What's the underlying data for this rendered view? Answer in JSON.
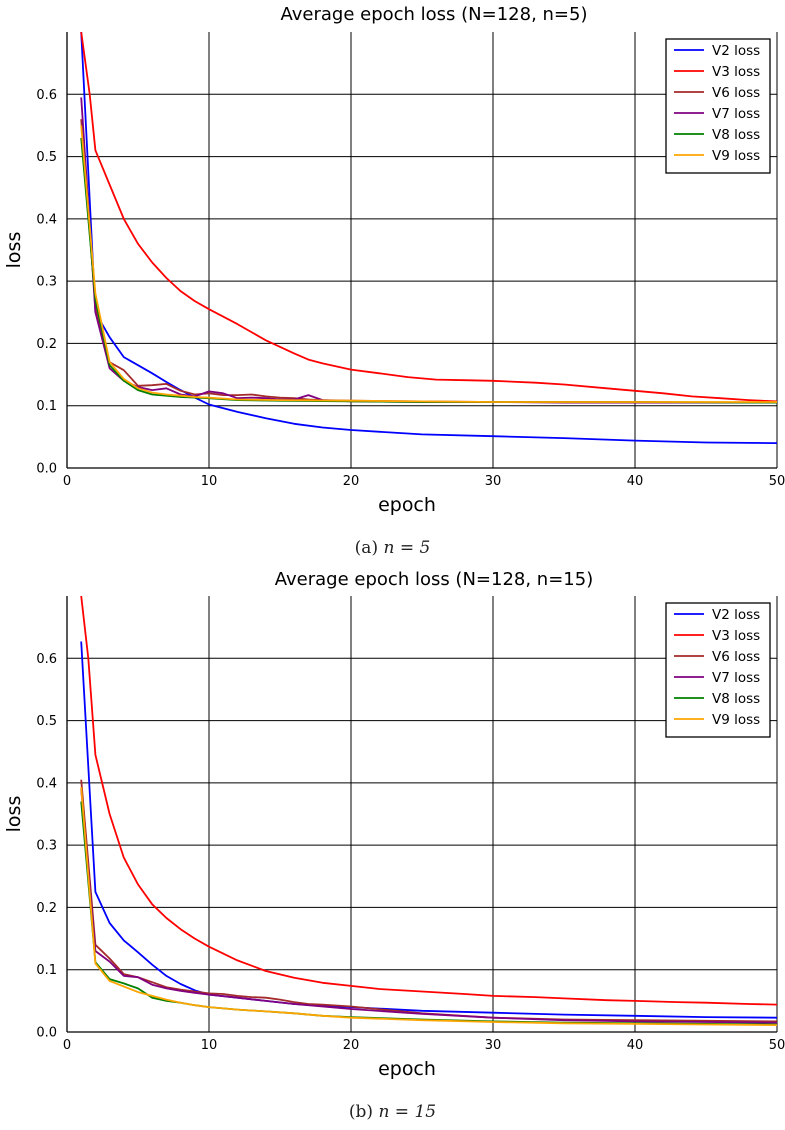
{
  "charts": [
    {
      "caption_prefix": "(a)",
      "caption_math": "n = 5",
      "chart_data": {
        "type": "line",
        "title": "Average epoch loss (N=128, n=5)",
        "xlabel": "epoch",
        "ylabel": "loss",
        "xlim": [
          0,
          50
        ],
        "ylim": [
          0,
          0.7
        ],
        "xticks": [
          0,
          10,
          20,
          30,
          40,
          50
        ],
        "yticks": [
          0.0,
          0.1,
          0.2,
          0.3,
          0.4,
          0.5,
          0.6
        ],
        "grid": true,
        "legend": "top-right",
        "series": [
          {
            "name": "V2 loss",
            "color": "#0000ff",
            "x": [
              1,
              2,
              3,
              4,
              5,
              6,
              7,
              8,
              9,
              10,
              12,
              14,
              16,
              18,
              20,
              25,
              30,
              35,
              40,
              45,
              50
            ],
            "values": [
              0.7,
              0.25,
              0.21,
              0.178,
              0.165,
              0.152,
              0.138,
              0.125,
              0.113,
              0.102,
              0.09,
              0.08,
              0.071,
              0.065,
              0.061,
              0.054,
              0.051,
              0.048,
              0.044,
              0.041,
              0.04
            ]
          },
          {
            "name": "V3 loss",
            "color": "#ff0000",
            "x": [
              1,
              1.6,
              2,
              3,
              4,
              5,
              6,
              7,
              8,
              9,
              10,
              12,
              14,
              16,
              17,
              18,
              20,
              22,
              24,
              26,
              28,
              30,
              33,
              35,
              38,
              40,
              42,
              44,
              46,
              48,
              50
            ],
            "values": [
              0.7,
              0.6,
              0.51,
              0.455,
              0.4,
              0.36,
              0.33,
              0.305,
              0.284,
              0.268,
              0.255,
              0.231,
              0.205,
              0.184,
              0.174,
              0.168,
              0.158,
              0.152,
              0.146,
              0.142,
              0.141,
              0.14,
              0.137,
              0.134,
              0.128,
              0.124,
              0.12,
              0.115,
              0.112,
              0.109,
              0.107
            ]
          },
          {
            "name": "V6 loss",
            "color": "#a52a2a",
            "x": [
              1,
              2,
              3,
              4,
              5,
              6,
              7,
              8,
              9,
              10,
              11,
              12,
              13,
              14,
              15,
              16,
              17,
              18,
              20,
              25,
              30,
              35,
              40,
              45,
              50
            ],
            "values": [
              0.56,
              0.26,
              0.17,
              0.157,
              0.132,
              0.133,
              0.135,
              0.124,
              0.118,
              0.12,
              0.117,
              0.117,
              0.118,
              0.115,
              0.113,
              0.112,
              0.11,
              0.109,
              0.108,
              0.107,
              0.106,
              0.106,
              0.106,
              0.105,
              0.105
            ]
          },
          {
            "name": "V7 loss",
            "color": "#800080",
            "x": [
              1,
              2,
              3,
              4,
              5,
              6,
              7,
              8,
              9,
              10,
              11,
              12,
              13,
              14,
              15,
              16,
              17,
              18,
              19,
              20,
              25,
              30,
              35,
              40,
              45,
              50
            ],
            "values": [
              0.595,
              0.25,
              0.16,
              0.14,
              0.13,
              0.125,
              0.128,
              0.118,
              0.115,
              0.123,
              0.12,
              0.112,
              0.113,
              0.112,
              0.11,
              0.11,
              0.117,
              0.109,
              0.108,
              0.107,
              0.106,
              0.106,
              0.105,
              0.105,
              0.105,
              0.105
            ]
          },
          {
            "name": "V8 loss",
            "color": "#008000",
            "x": [
              1,
              2,
              3,
              4,
              5,
              6,
              7,
              8,
              9,
              10,
              12,
              15,
              20,
              25,
              30,
              40,
              50
            ],
            "values": [
              0.53,
              0.27,
              0.165,
              0.14,
              0.125,
              0.118,
              0.116,
              0.114,
              0.113,
              0.112,
              0.109,
              0.108,
              0.107,
              0.106,
              0.106,
              0.106,
              0.105
            ]
          },
          {
            "name": "V9 loss",
            "color": "#ffa500",
            "x": [
              1,
              2,
              3,
              4,
              5,
              6,
              7,
              8,
              9,
              10,
              12,
              15,
              20,
              25,
              30,
              40,
              50
            ],
            "values": [
              0.55,
              0.28,
              0.17,
              0.143,
              0.128,
              0.121,
              0.118,
              0.116,
              0.114,
              0.113,
              0.11,
              0.109,
              0.108,
              0.107,
              0.106,
              0.106,
              0.106
            ]
          }
        ]
      }
    },
    {
      "caption_prefix": "(b)",
      "caption_math": "n = 15",
      "chart_data": {
        "type": "line",
        "title": "Average epoch loss (N=128, n=15)",
        "xlabel": "epoch",
        "ylabel": "loss",
        "xlim": [
          0,
          50
        ],
        "ylim": [
          0,
          0.7
        ],
        "xticks": [
          0,
          10,
          20,
          30,
          40,
          50
        ],
        "yticks": [
          0.0,
          0.1,
          0.2,
          0.3,
          0.4,
          0.5,
          0.6
        ],
        "grid": true,
        "legend": "top-right",
        "series": [
          {
            "name": "V2 loss",
            "color": "#0000ff",
            "x": [
              1,
              2,
              3,
              4,
              5,
              6,
              7,
              8,
              9,
              10,
              12,
              14,
              16,
              18,
              20,
              25,
              30,
              35,
              40,
              45,
              50
            ],
            "values": [
              0.627,
              0.225,
              0.175,
              0.147,
              0.128,
              0.108,
              0.09,
              0.077,
              0.067,
              0.06,
              0.055,
              0.05,
              0.045,
              0.042,
              0.04,
              0.034,
              0.031,
              0.028,
              0.026,
              0.024,
              0.023
            ]
          },
          {
            "name": "V3 loss",
            "color": "#ff0000",
            "x": [
              1,
              1.5,
              2,
              3,
              4,
              5,
              6,
              7,
              8,
              9,
              10,
              12,
              14,
              16,
              18,
              20,
              22,
              25,
              28,
              30,
              33,
              35,
              38,
              40,
              43,
              45,
              48,
              50
            ],
            "values": [
              0.7,
              0.6,
              0.445,
              0.35,
              0.28,
              0.237,
              0.205,
              0.183,
              0.165,
              0.15,
              0.137,
              0.115,
              0.098,
              0.087,
              0.079,
              0.074,
              0.069,
              0.065,
              0.061,
              0.058,
              0.056,
              0.054,
              0.051,
              0.05,
              0.048,
              0.047,
              0.045,
              0.044
            ]
          },
          {
            "name": "V6 loss",
            "color": "#a52a2a",
            "x": [
              1,
              2,
              3,
              4,
              5,
              6,
              7,
              8,
              9,
              10,
              11,
              12,
              13,
              14,
              15,
              16,
              17,
              18,
              20,
              25,
              30,
              35,
              40,
              45,
              50
            ],
            "values": [
              0.405,
              0.14,
              0.118,
              0.093,
              0.088,
              0.08,
              0.072,
              0.068,
              0.065,
              0.062,
              0.061,
              0.058,
              0.056,
              0.055,
              0.052,
              0.048,
              0.045,
              0.044,
              0.041,
              0.03,
              0.023,
              0.02,
              0.019,
              0.018,
              0.017
            ]
          },
          {
            "name": "V7 loss",
            "color": "#800080",
            "x": [
              1,
              2,
              3,
              4,
              5,
              6,
              7,
              8,
              9,
              10,
              12,
              14,
              16,
              18,
              20,
              25,
              30,
              35,
              40,
              45,
              50
            ],
            "values": [
              0.39,
              0.13,
              0.113,
              0.09,
              0.088,
              0.076,
              0.07,
              0.066,
              0.063,
              0.06,
              0.055,
              0.05,
              0.045,
              0.041,
              0.037,
              0.029,
              0.023,
              0.019,
              0.017,
              0.016,
              0.015
            ]
          },
          {
            "name": "V8 loss",
            "color": "#008000",
            "x": [
              1,
              2,
              3,
              4,
              5,
              6,
              7,
              8,
              9,
              10,
              12,
              14,
              16,
              18,
              20,
              25,
              30,
              35,
              40,
              45,
              50
            ],
            "values": [
              0.37,
              0.112,
              0.085,
              0.078,
              0.07,
              0.055,
              0.05,
              0.047,
              0.043,
              0.04,
              0.036,
              0.033,
              0.03,
              0.026,
              0.024,
              0.02,
              0.017,
              0.015,
              0.014,
              0.013,
              0.012
            ]
          },
          {
            "name": "V9 loss",
            "color": "#ffa500",
            "x": [
              1,
              2,
              3,
              4,
              5,
              6,
              7,
              8,
              9,
              10,
              12,
              14,
              16,
              18,
              20,
              25,
              30,
              35,
              40,
              45,
              50
            ],
            "values": [
              0.393,
              0.11,
              0.082,
              0.073,
              0.064,
              0.058,
              0.052,
              0.047,
              0.043,
              0.04,
              0.036,
              0.033,
              0.03,
              0.026,
              0.023,
              0.019,
              0.016,
              0.014,
              0.013,
              0.012,
              0.011
            ]
          }
        ]
      }
    }
  ]
}
